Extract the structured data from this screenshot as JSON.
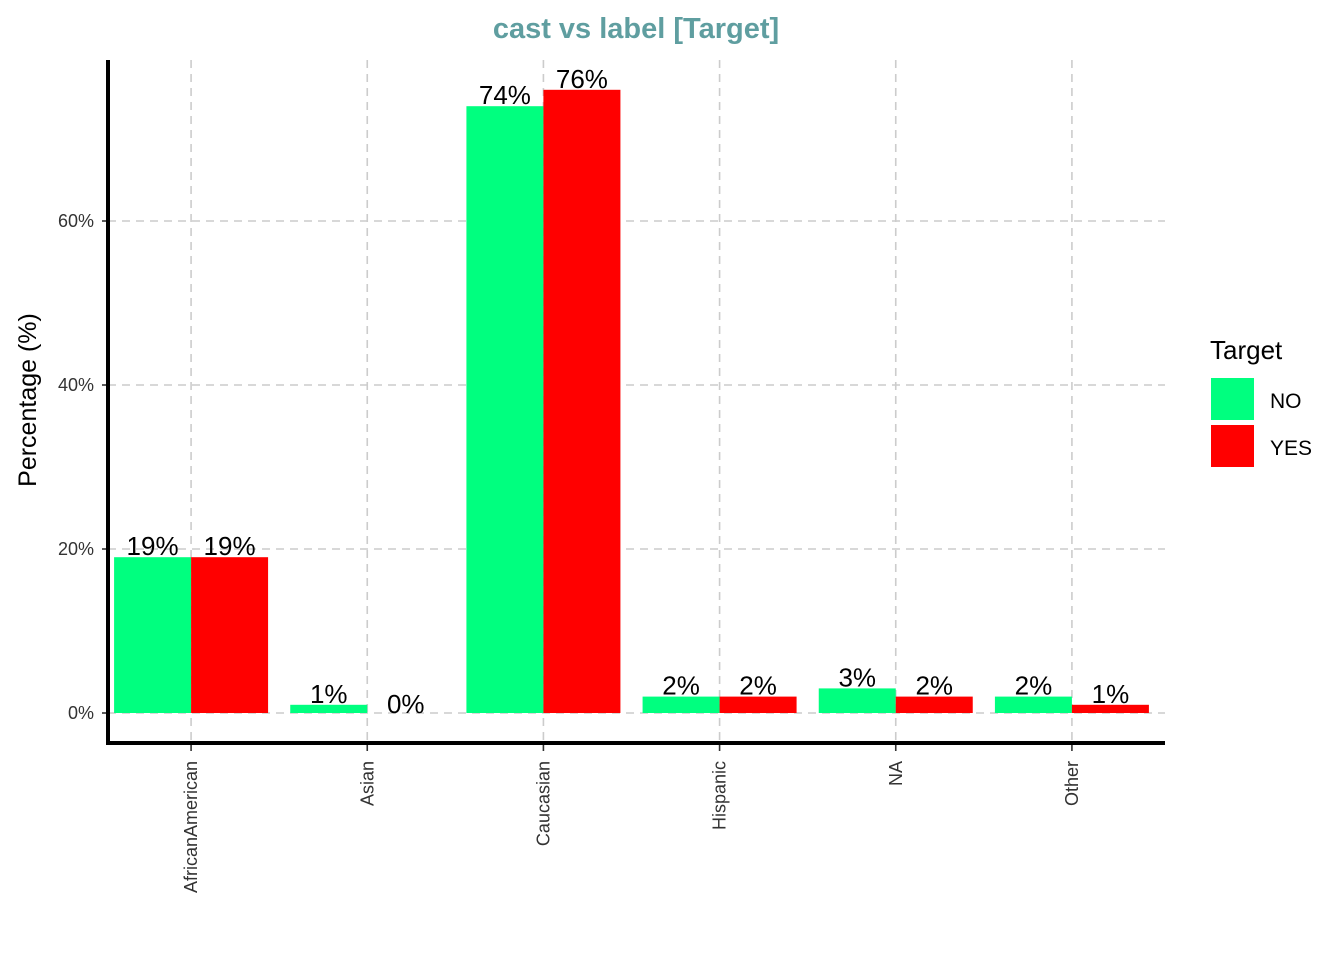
{
  "chart_data": {
    "type": "bar",
    "title": "cast vs label [Target]",
    "xlabel": "",
    "ylabel": "Percentage (%)",
    "categories": [
      "AfricanAmerican",
      "Asian",
      "Caucasian",
      "Hispanic",
      "NA",
      "Other"
    ],
    "series": [
      {
        "name": "NO",
        "color": "#00ff7f",
        "values": [
          19,
          1,
          74,
          2,
          3,
          2
        ],
        "labels": [
          "19%",
          "1%",
          "74%",
          "2%",
          "3%",
          "2%"
        ]
      },
      {
        "name": "YES",
        "color": "#ff0000",
        "values": [
          19,
          0,
          76,
          2,
          2,
          1
        ],
        "labels": [
          "19%",
          "0%",
          "76%",
          "2%",
          "2%",
          "1%"
        ]
      }
    ],
    "ylim": [
      -3.5,
      79.5
    ],
    "yticks": [
      0,
      20,
      40,
      60
    ],
    "ytick_labels": [
      "0%",
      "20%",
      "40%",
      "60%"
    ],
    "grid": true,
    "legend": {
      "title": "Target",
      "placement": "right"
    }
  }
}
